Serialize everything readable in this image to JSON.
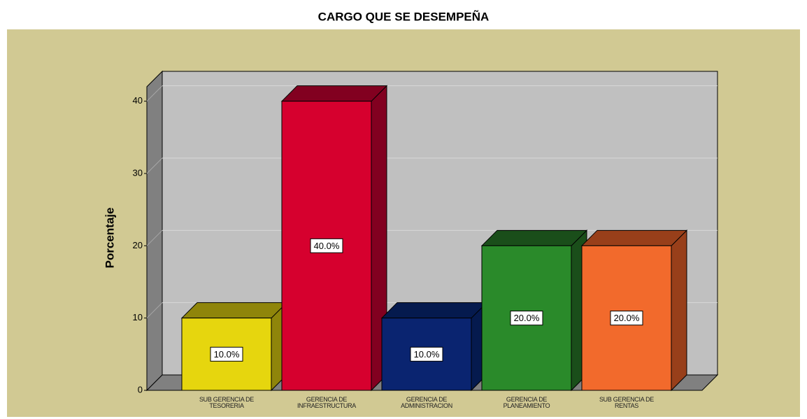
{
  "chart_data": {
    "type": "bar3d",
    "title": "CARGO QUE SE DESEMPEÑA",
    "y_label": "Porcentaje",
    "categories": [
      "SUB GERENCIA DE TESORERIA",
      "GERENCIA DE INFRAESTRUCTURA",
      "GERENCIA DE ADMINISTRACION",
      "GERENCIA DE PLANEAMIENTO",
      "SUB GERENCIA DE RENTAS"
    ],
    "values": [
      10,
      40,
      10,
      20,
      20
    ],
    "value_labels": [
      "10.0%",
      "40.0%",
      "10.0%",
      "20.0%",
      "20.0%"
    ],
    "colors": [
      "#e6d60e",
      "#d6002e",
      "#0a2470",
      "#2a8a2a",
      "#f26a2c"
    ],
    "shade_colors": [
      "#8f850a",
      "#820020",
      "#051a4e",
      "#1a4e1a",
      "#983f1a"
    ],
    "ylim": [
      0,
      42
    ],
    "yticks": [
      0,
      10,
      20,
      30,
      40
    ],
    "grid": true
  }
}
